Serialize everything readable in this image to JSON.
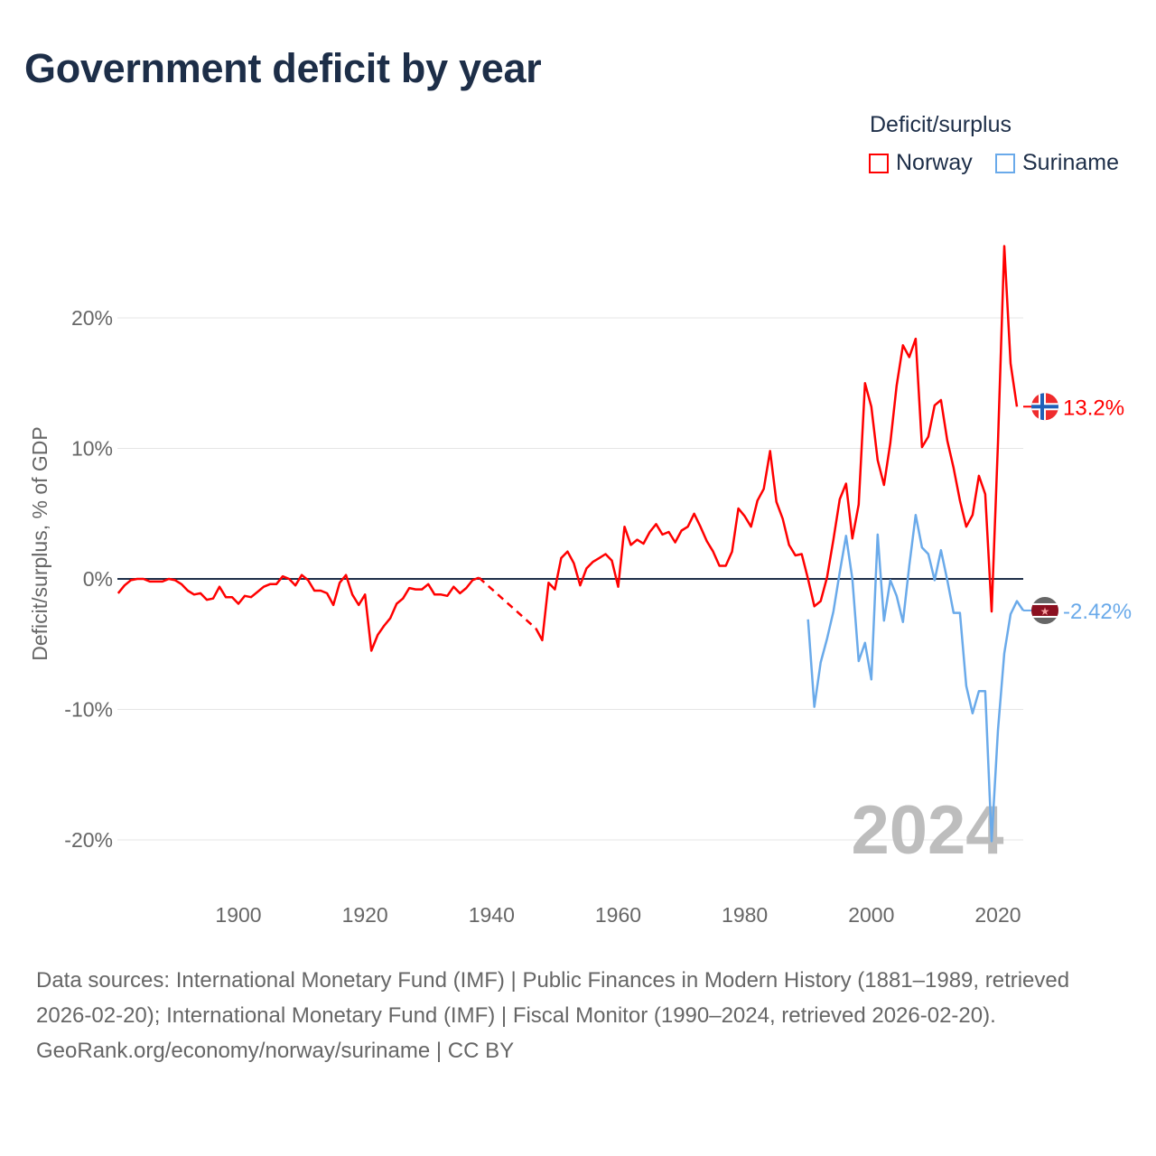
{
  "chart_data": {
    "type": "line",
    "title": "Government deficit by year",
    "ylabel": "Deficit/surplus, % of GDP",
    "xlabel": "",
    "xlim": [
      1881,
      2024
    ],
    "ylim": [
      -20,
      25.5
    ],
    "xticks": [
      1900,
      1920,
      1940,
      1960,
      1980,
      2000,
      2020
    ],
    "xtick_labels": [
      "1900",
      "1920",
      "1940",
      "1960",
      "1980",
      "2000",
      "2020"
    ],
    "yticks": [
      20,
      10,
      0,
      -10,
      -20
    ],
    "ytick_labels": [
      "20%",
      "10%",
      "0%",
      "-10%",
      "-20%"
    ],
    "grid": true,
    "legend_title": "Deficit/surplus",
    "legend_position": "top-right",
    "year_watermark": "2024",
    "series": [
      {
        "name": "Norway",
        "color": "#ff0000",
        "end_label": "13.2%",
        "flag": "norway-flag",
        "gap": [
          1938,
          1946
        ],
        "start_year": 1881,
        "values": [
          -1.1,
          -0.5,
          -0.1,
          0,
          0,
          -0.2,
          -0.2,
          -0.2,
          0,
          -0.1,
          -0.4,
          -0.9,
          -1.2,
          -1.1,
          -1.6,
          -1.5,
          -0.6,
          -1.4,
          -1.4,
          -1.9,
          -1.3,
          -1.4,
          -1.0,
          -0.6,
          -0.4,
          -0.4,
          0.2,
          0,
          -0.5,
          0.3,
          -0.1,
          -0.9,
          -0.9,
          -1.1,
          -2.0,
          -0.3,
          0.3,
          -1.2,
          -2.0,
          -1.2,
          -5.5,
          -4.3,
          -3.6,
          -3.0,
          -1.9,
          -1.5,
          -0.7,
          -0.8,
          -0.8,
          -0.4,
          -1.2,
          -1.2,
          -1.3,
          -0.6,
          -1.1,
          -0.7,
          -0.1,
          0.1,
          null,
          null,
          null,
          null,
          null,
          null,
          null,
          null,
          -3.8,
          -4.7,
          -0.3,
          -0.8,
          1.6,
          2.1,
          1.2,
          -0.5,
          0.8,
          1.3,
          1.6,
          1.9,
          1.4,
          -0.6,
          4.0,
          2.6,
          3.0,
          2.7,
          3.6,
          4.2,
          3.4,
          3.6,
          2.8,
          3.7,
          4.0,
          5.0,
          4.0,
          2.9,
          2.1,
          1.0,
          1.0,
          2.1,
          5.4,
          4.8,
          4.0,
          6.0,
          6.9,
          9.8,
          5.9,
          4.6,
          2.6,
          1.8,
          1.9,
          0.0,
          -2.1,
          -1.7,
          0.1,
          3.0,
          6.1,
          7.3,
          3.1,
          5.7,
          15.0,
          13.2,
          9.1,
          7.2,
          10.4,
          14.8,
          17.9,
          17.0,
          18.4,
          10.1,
          10.9,
          13.3,
          13.7,
          10.6,
          8.5,
          6.0,
          4.0,
          4.9,
          7.9,
          6.5,
          -2.5,
          10.4,
          25.5,
          16.5,
          13.2
        ]
      },
      {
        "name": "Suriname",
        "color": "#6aaaea",
        "end_label": "-2.42%",
        "flag": "suriname-flag",
        "start_year": 1990,
        "values": [
          -3.1,
          -9.8,
          -6.4,
          -4.6,
          -2.5,
          0.5,
          3.3,
          0.0,
          -6.3,
          -4.9,
          -7.7,
          3.4,
          -3.2,
          -0.1,
          -1.3,
          -3.3,
          1.0,
          4.9,
          2.4,
          1.9,
          -0.1,
          2.2,
          -0.1,
          -2.6,
          -2.6,
          -8.2,
          -10.3,
          -8.6,
          -8.6,
          -20.1,
          -11.6,
          -5.7,
          -2.7,
          -1.7,
          -2.42
        ]
      }
    ]
  },
  "footer": {
    "sources": "Data sources: International Monetary Fund (IMF) | Public Finances in Modern History (1881–1989, retrieved 2026-02-20); International Monetary Fund (IMF) | Fiscal Monitor (1990–2024, retrieved 2026-02-20).",
    "credit": "GeoRank.org/economy/norway/suriname | CC BY"
  }
}
